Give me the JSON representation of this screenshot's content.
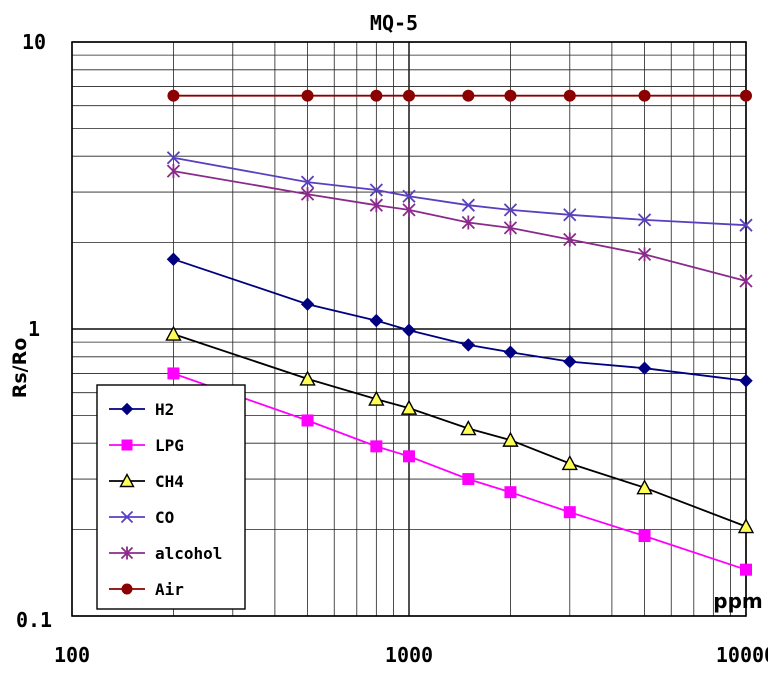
{
  "chart_data": {
    "type": "line",
    "title": "MQ-5",
    "xlabel": "ppm",
    "ylabel": "Rs/Ro",
    "x_scale": "log",
    "y_scale": "log",
    "xlim": [
      100,
      10000
    ],
    "ylim": [
      0.1,
      10
    ],
    "x_tick_labels": [
      "100",
      "1000",
      "10000"
    ],
    "y_tick_labels": [
      "10",
      "1",
      "0.1"
    ],
    "grid": true,
    "legend_position": "bottom-left",
    "series": [
      {
        "name": "H2",
        "color": "#000080",
        "marker": "diamond",
        "x": [
          200,
          500,
          800,
          1000,
          1500,
          2000,
          3000,
          5000,
          10000
        ],
        "y": [
          1.75,
          1.22,
          1.07,
          0.99,
          0.88,
          0.83,
          0.77,
          0.73,
          0.66
        ]
      },
      {
        "name": "LPG",
        "color": "#ff00ff",
        "marker": "square",
        "x": [
          200,
          500,
          800,
          1000,
          1500,
          2000,
          3000,
          5000,
          10000
        ],
        "y": [
          0.7,
          0.48,
          0.39,
          0.36,
          0.3,
          0.27,
          0.23,
          0.19,
          0.145
        ]
      },
      {
        "name": "CH4",
        "color": "#000000",
        "marker": "triangle",
        "x": [
          200,
          500,
          800,
          1000,
          1500,
          2000,
          3000,
          5000,
          10000
        ],
        "y": [
          0.96,
          0.67,
          0.57,
          0.53,
          0.45,
          0.41,
          0.34,
          0.28,
          0.205
        ]
      },
      {
        "name": "CO",
        "color": "#5a3fbf",
        "marker": "x",
        "x": [
          200,
          500,
          800,
          1000,
          1500,
          2000,
          3000,
          5000,
          10000
        ],
        "y": [
          3.95,
          3.25,
          3.05,
          2.9,
          2.7,
          2.6,
          2.5,
          2.4,
          2.3
        ]
      },
      {
        "name": "alcohol",
        "color": "#8b2a8b",
        "marker": "star",
        "x": [
          200,
          500,
          800,
          1000,
          1500,
          2000,
          3000,
          5000,
          10000
        ],
        "y": [
          3.55,
          2.95,
          2.7,
          2.6,
          2.35,
          2.25,
          2.05,
          1.82,
          1.47
        ]
      },
      {
        "name": "Air",
        "color": "#8b0000",
        "marker": "circle",
        "x": [
          200,
          500,
          800,
          1000,
          1500,
          2000,
          3000,
          5000,
          10000
        ],
        "y": [
          6.5,
          6.5,
          6.5,
          6.5,
          6.5,
          6.5,
          6.5,
          6.5,
          6.5
        ]
      }
    ]
  }
}
